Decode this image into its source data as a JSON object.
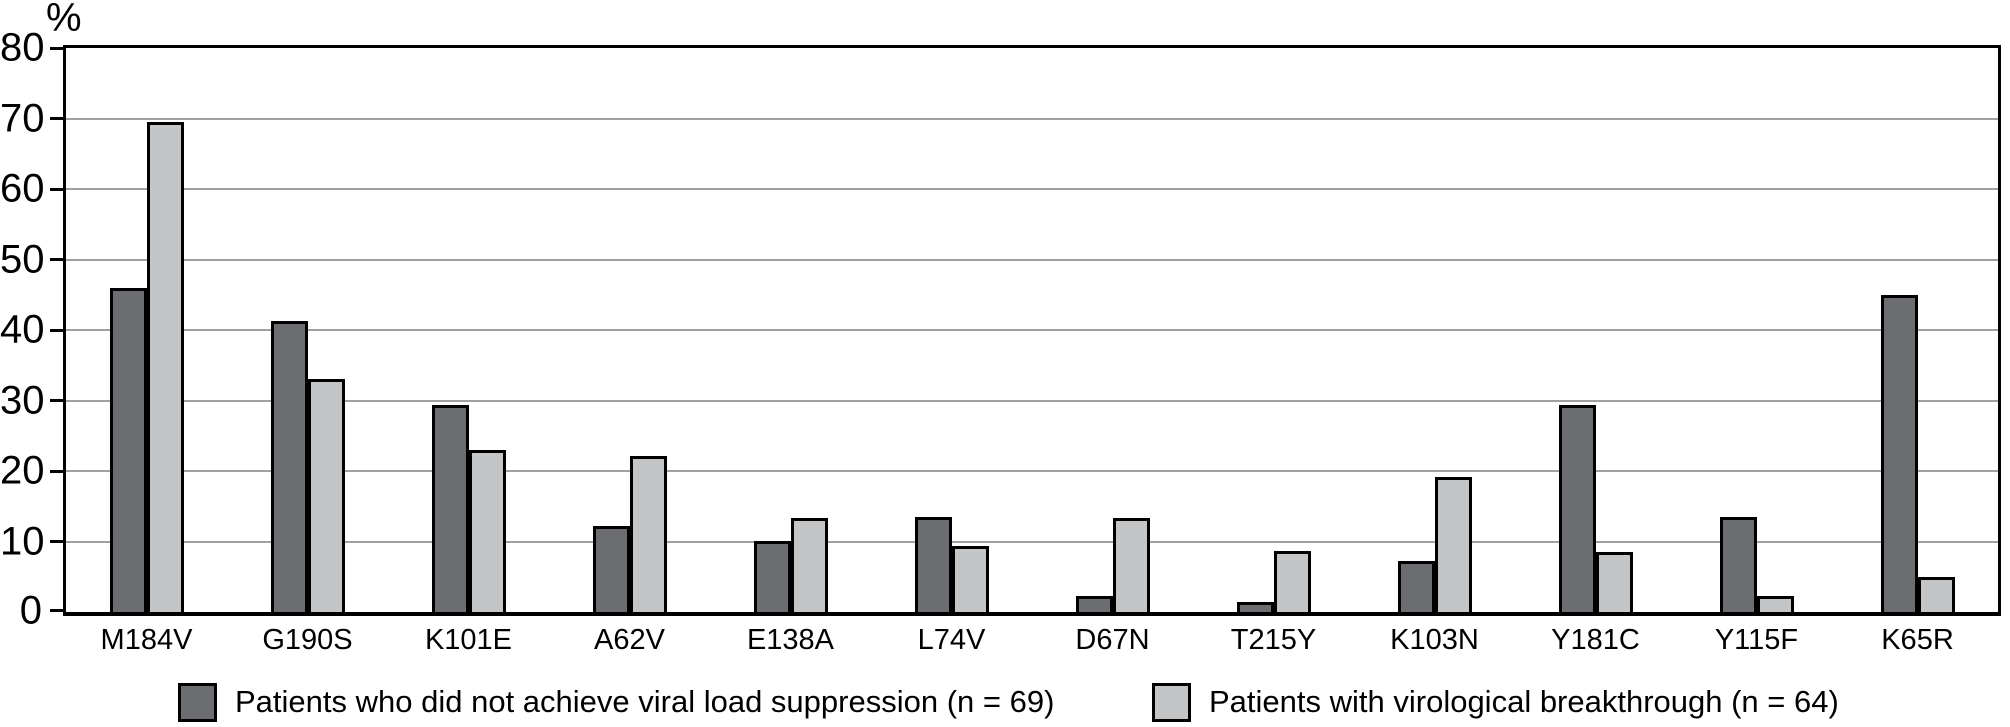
{
  "chart_data": {
    "type": "bar",
    "title": "",
    "xlabel": "",
    "ylabel": "%",
    "ylim": [
      0,
      80
    ],
    "yticks": [
      0,
      10,
      20,
      30,
      40,
      50,
      60,
      70,
      80
    ],
    "grid": "horizontal",
    "legend_position": "bottom",
    "categories": [
      "M184V",
      "G190S",
      "K101E",
      "A62V",
      "E138A",
      "L74V",
      "D67N",
      "T215Y",
      "K103N",
      "Y181C",
      "Y115F",
      "K65R"
    ],
    "series": [
      {
        "name": "Patients who did not achieve viral load suppression (n = 69)",
        "color": "#6b6d70",
        "values": [
          46.0,
          41.3,
          29.3,
          12.2,
          10.1,
          13.5,
          2.2,
          1.4,
          7.2,
          29.3,
          13.5,
          45.0
        ]
      },
      {
        "name": "Patients with virological breakthrough (n = 64)",
        "color": "#c3c5c7",
        "values": [
          69.5,
          33.0,
          23.0,
          22.1,
          13.4,
          9.3,
          13.4,
          8.6,
          19.2,
          8.5,
          2.2,
          5.0
        ]
      }
    ]
  },
  "colors": {
    "axis": "#000000",
    "gridline": "#a0a0a0",
    "bar_border": "#000000",
    "background": "#ffffff"
  },
  "legend": {
    "items": [
      {
        "label": "Patients who did not achieve viral load suppression (n = 69)"
      },
      {
        "label": "Patients with virological breakthrough (n = 64)"
      }
    ]
  }
}
